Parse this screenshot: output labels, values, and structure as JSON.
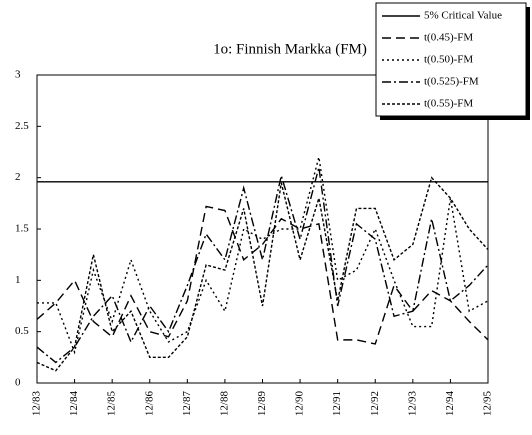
{
  "chart_data": {
    "type": "line",
    "title": "1o:  Finnish Markka (FM)",
    "categories": [
      "12/83",
      null,
      "12/84",
      null,
      "12/85",
      null,
      "12/86",
      null,
      "12/87",
      null,
      "12/88",
      null,
      "12/89",
      null,
      "12/90",
      null,
      "12/91",
      null,
      "12/92",
      null,
      "12/93",
      null,
      "12/94",
      null,
      "12/95"
    ],
    "series": [
      {
        "name": "5% Critical Value",
        "color": "#000000",
        "style": "solid",
        "values": [
          1.96,
          1.96,
          1.96,
          1.96,
          1.96,
          1.96,
          1.96,
          1.96,
          1.96,
          1.96,
          1.96,
          1.96,
          1.96,
          1.96,
          1.96,
          1.96,
          1.96,
          1.96,
          1.96,
          1.96,
          1.96,
          1.96,
          1.96,
          1.96,
          1.96
        ]
      },
      {
        "name": "t(0.45)-FM",
        "color": "#000000",
        "style": "dashed",
        "values": [
          0.62,
          0.78,
          1.0,
          0.6,
          0.45,
          0.85,
          0.5,
          0.45,
          0.8,
          1.72,
          1.68,
          1.2,
          1.35,
          1.6,
          1.5,
          1.55,
          0.42,
          0.42,
          0.38,
          0.95,
          0.7,
          0.9,
          0.8,
          0.6,
          0.42
        ]
      },
      {
        "name": "t(0.50)-FM",
        "color": "#000000",
        "style": "finedot",
        "values": [
          0.78,
          0.78,
          0.3,
          1.1,
          0.6,
          1.2,
          0.7,
          0.4,
          0.5,
          1.0,
          0.7,
          1.5,
          1.4,
          1.5,
          1.5,
          2.2,
          1.0,
          1.1,
          1.5,
          1.0,
          0.55,
          0.55,
          1.8,
          0.7,
          0.8
        ]
      },
      {
        "name": "t(0.525)-FM",
        "color": "#000000",
        "style": "dashdot",
        "values": [
          0.35,
          0.2,
          0.35,
          0.65,
          0.85,
          0.4,
          0.75,
          0.5,
          0.95,
          1.45,
          1.2,
          1.9,
          1.2,
          2.02,
          1.4,
          2.1,
          0.75,
          1.55,
          1.4,
          0.65,
          0.7,
          1.6,
          0.8,
          0.95,
          1.15
        ]
      },
      {
        "name": "t(0.55)-FM",
        "color": "#000000",
        "style": "dotted",
        "values": [
          0.2,
          0.12,
          0.35,
          1.25,
          0.5,
          0.7,
          0.25,
          0.25,
          0.45,
          1.15,
          1.1,
          1.7,
          0.75,
          1.95,
          1.2,
          1.8,
          0.8,
          1.7,
          1.7,
          1.2,
          1.35,
          2.0,
          1.8,
          1.5,
          1.3
        ]
      }
    ],
    "ylim": [
      0,
      3
    ],
    "yticks": [
      0,
      0.5,
      1,
      1.5,
      2,
      2.5,
      3
    ],
    "legend": "top-right"
  }
}
